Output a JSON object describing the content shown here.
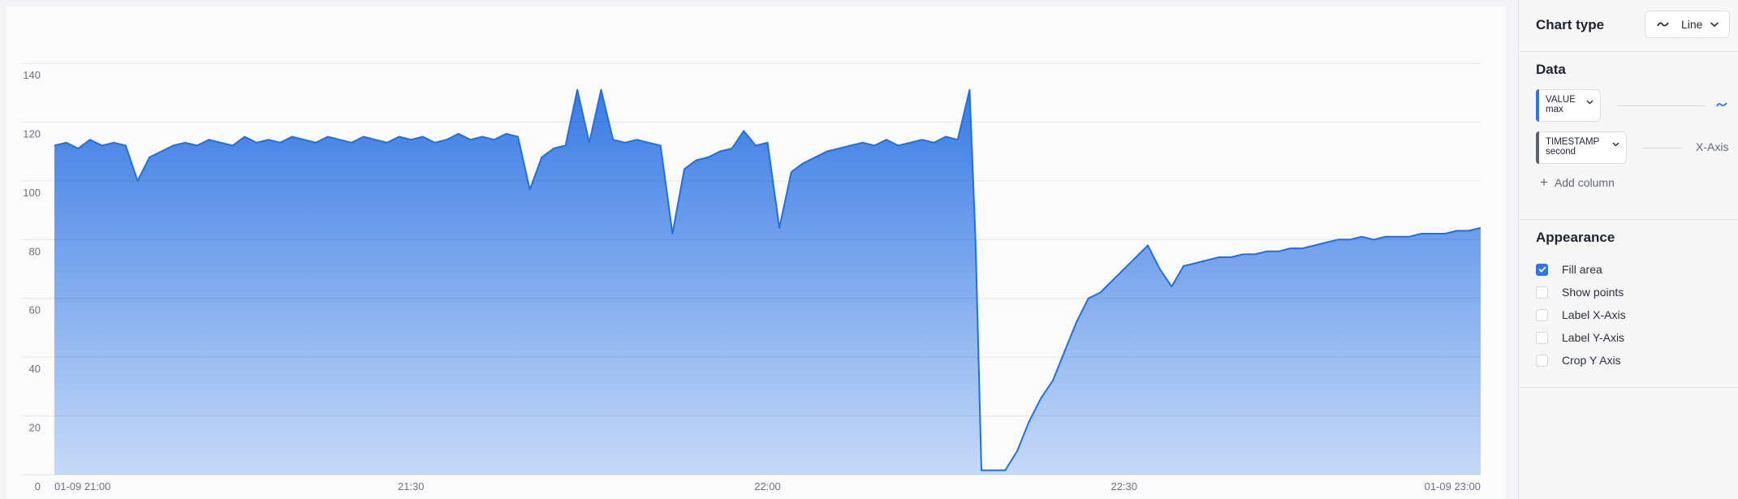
{
  "chart_data": {
    "type": "area",
    "title": "",
    "xlabel": "",
    "ylabel": "",
    "ylim": [
      0,
      140
    ],
    "yticks": [
      "0",
      "20",
      "40",
      "60",
      "80",
      "100",
      "120",
      "140"
    ],
    "xticks": [
      {
        "time": "21:00",
        "label": "01-09 21:00"
      },
      {
        "time": "21:30",
        "label": "21:30"
      },
      {
        "time": "22:00",
        "label": "22:00"
      },
      {
        "time": "22:30",
        "label": "22:30"
      },
      {
        "time": "23:00",
        "label": "01-09 23:00"
      }
    ],
    "xlim": [
      "21:00",
      "23:00"
    ],
    "grid": true,
    "fill": true,
    "series": [
      {
        "color": "#1f6fe5",
        "x": [
          "21:00",
          "21:01",
          "21:02",
          "21:03",
          "21:04",
          "21:05",
          "21:06",
          "21:07",
          "21:08",
          "21:09",
          "21:10",
          "21:11",
          "21:12",
          "21:13",
          "21:14",
          "21:15",
          "21:16",
          "21:17",
          "21:18",
          "21:19",
          "21:20",
          "21:21",
          "21:22",
          "21:23",
          "21:24",
          "21:25",
          "21:26",
          "21:27",
          "21:28",
          "21:29",
          "21:30",
          "21:31",
          "21:32",
          "21:33",
          "21:34",
          "21:35",
          "21:36",
          "21:37",
          "21:38",
          "21:39",
          "21:40",
          "21:41",
          "21:42",
          "21:43",
          "21:44",
          "21:45",
          "21:46",
          "21:47",
          "21:48",
          "21:49",
          "21:50",
          "21:51",
          "21:52",
          "21:53",
          "21:54",
          "21:55",
          "21:56",
          "21:57",
          "21:58",
          "21:59",
          "22:00",
          "22:01",
          "22:02",
          "22:03",
          "22:04",
          "22:05",
          "22:06",
          "22:07",
          "22:08",
          "22:09",
          "22:10",
          "22:11",
          "22:12",
          "22:13",
          "22:14",
          "22:15",
          "22:16",
          "22:17",
          "22:17:30",
          "22:18",
          "22:19",
          "22:20",
          "22:21",
          "22:22",
          "22:23",
          "22:24",
          "22:25",
          "22:26",
          "22:27",
          "22:28",
          "22:29",
          "22:30",
          "22:31",
          "22:32",
          "22:33",
          "22:34",
          "22:35",
          "22:36",
          "22:37",
          "22:38",
          "22:39",
          "22:40",
          "22:41",
          "22:42",
          "22:43",
          "22:44",
          "22:45",
          "22:46",
          "22:47",
          "22:48",
          "22:49",
          "22:50",
          "22:51",
          "22:52",
          "22:53",
          "22:54",
          "22:55",
          "22:56",
          "22:57",
          "22:58",
          "22:59",
          "23:00"
        ],
        "y": [
          112,
          113,
          111,
          114,
          112,
          113,
          112,
          100,
          108,
          110,
          112,
          113,
          112,
          114,
          113,
          112,
          115,
          113,
          114,
          113,
          115,
          114,
          113,
          115,
          114,
          113,
          115,
          114,
          113,
          115,
          114,
          115,
          113,
          114,
          116,
          114,
          115,
          114,
          116,
          115,
          97,
          108,
          111,
          112,
          131,
          113,
          131,
          114,
          113,
          114,
          113,
          112,
          82,
          104,
          107,
          108,
          110,
          111,
          117,
          112,
          113,
          84,
          103,
          106,
          108,
          110,
          111,
          112,
          113,
          112,
          114,
          112,
          113,
          114,
          113,
          115,
          114,
          131,
          80,
          1.5,
          1.5,
          1.5,
          8,
          18,
          26,
          32,
          42,
          52,
          60,
          62,
          66,
          70,
          74,
          78,
          70,
          64,
          71,
          72,
          73,
          74,
          74,
          75,
          75,
          76,
          76,
          77,
          77,
          78,
          79,
          80,
          80,
          81,
          80,
          81,
          81,
          81,
          82,
          82,
          82,
          83,
          83,
          84
        ]
      }
    ]
  },
  "panel": {
    "chart_type_label": "Chart type",
    "chart_type_value": "Line",
    "data_title": "Data",
    "columns": [
      {
        "name": "VALUE",
        "agg": "max",
        "color": "#2f74e8",
        "target_icon": "line-wave-icon"
      },
      {
        "name": "TIMESTAMP",
        "agg": "second",
        "color": "#5b6274",
        "target": "X-Axis"
      }
    ],
    "add_column": "Add column",
    "appearance_title": "Appearance",
    "options": [
      {
        "label": "Fill area",
        "checked": true
      },
      {
        "label": "Show points",
        "checked": false
      },
      {
        "label": "Label X-Axis",
        "checked": false
      },
      {
        "label": "Label Y-Axis",
        "checked": false
      },
      {
        "label": "Crop Y Axis",
        "checked": false
      }
    ]
  }
}
